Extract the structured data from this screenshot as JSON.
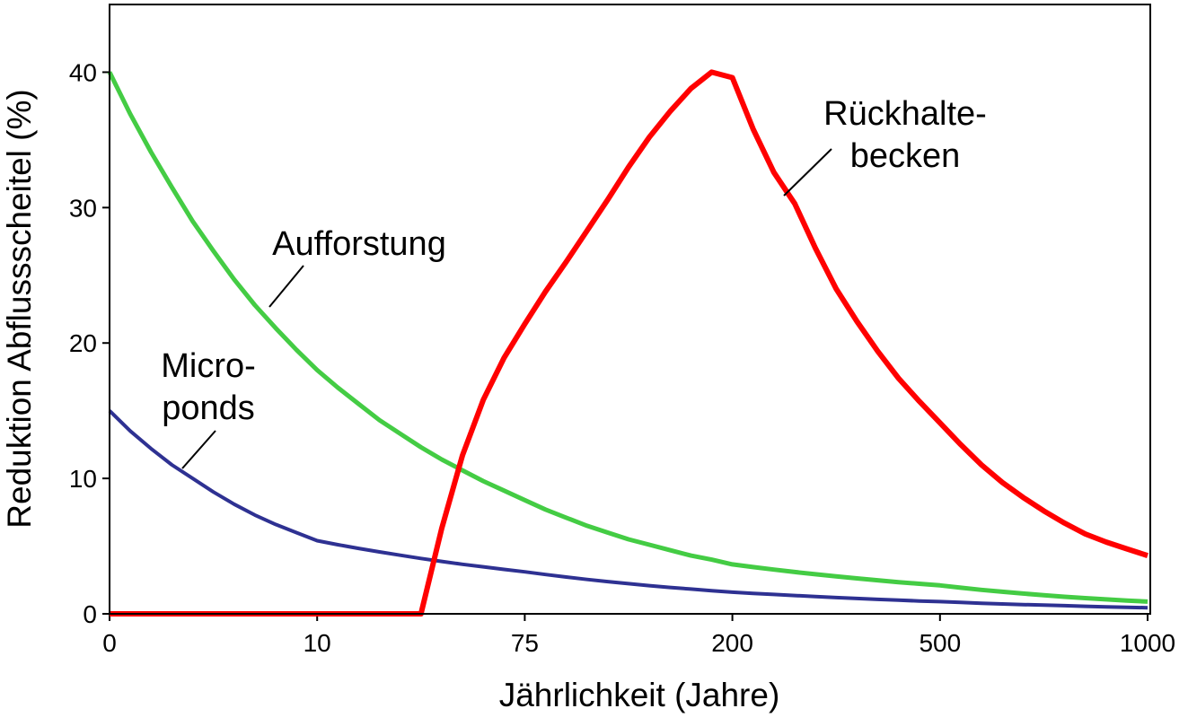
{
  "chart_data": {
    "type": "line",
    "x_label": "Jährlichkeit (Jahre)",
    "y_label": "Reduktion Abflussscheitel (%)",
    "categories": [
      "0",
      null,
      null,
      null,
      null,
      null,
      null,
      null,
      null,
      null,
      "10",
      null,
      null,
      null,
      null,
      null,
      null,
      null,
      null,
      null,
      "75",
      null,
      null,
      null,
      null,
      null,
      null,
      null,
      null,
      null,
      "200",
      null,
      null,
      null,
      null,
      null,
      null,
      null,
      null,
      null,
      "500",
      null,
      null,
      null,
      null,
      null,
      null,
      null,
      null,
      null,
      "1000"
    ],
    "ylim": [
      0,
      45
    ],
    "yticks": [
      0,
      10,
      20,
      30,
      40
    ],
    "series": [
      {
        "name": "Aufforstung",
        "color": "#44cc44",
        "values": [
          40,
          36.9,
          34.1,
          31.5,
          29.0,
          26.8,
          24.7,
          22.8,
          21.1,
          19.5,
          18.0,
          16.7,
          15.5,
          14.3,
          13.3,
          12.3,
          11.4,
          10.6,
          9.8,
          9.1,
          8.4,
          7.7,
          7.1,
          6.5,
          6.0,
          5.5,
          5.1,
          4.7,
          4.3,
          4.0,
          3.65,
          3.45,
          3.27,
          3.09,
          2.92,
          2.77,
          2.62,
          2.48,
          2.34,
          2.22,
          2.1,
          1.93,
          1.77,
          1.63,
          1.5,
          1.38,
          1.26,
          1.16,
          1.07,
          0.98,
          0.9
        ]
      },
      {
        "name": "Micro-ponds",
        "color": "#2e3192",
        "values": [
          15,
          13.5,
          12.2,
          11.0,
          10.0,
          9.0,
          8.1,
          7.3,
          6.6,
          6.0,
          5.4,
          5.1,
          4.83,
          4.57,
          4.33,
          4.09,
          3.87,
          3.66,
          3.47,
          3.28,
          3.1,
          2.9,
          2.72,
          2.54,
          2.38,
          2.23,
          2.08,
          1.95,
          1.83,
          1.71,
          1.6,
          1.51,
          1.43,
          1.35,
          1.27,
          1.2,
          1.13,
          1.07,
          1.01,
          0.95,
          0.9,
          0.84,
          0.78,
          0.73,
          0.68,
          0.64,
          0.6,
          0.56,
          0.52,
          0.48,
          0.45
        ]
      },
      {
        "name": "Rückhaltebecken",
        "color": "#ff0000",
        "values": [
          0,
          0,
          0,
          0,
          0,
          0,
          0,
          0,
          0,
          0,
          0,
          0,
          0,
          0,
          0,
          0,
          6.3,
          11.7,
          15.8,
          18.9,
          21.4,
          23.8,
          26.0,
          28.3,
          30.6,
          33.0,
          35.2,
          37.1,
          38.8,
          40.0,
          39.6,
          35.8,
          32.6,
          30.3,
          27.0,
          24.0,
          21.6,
          19.4,
          17.4,
          15.7,
          14.1,
          12.5,
          11.0,
          9.7,
          8.6,
          7.6,
          6.7,
          5.9,
          5.3,
          4.8,
          4.3
        ]
      }
    ],
    "annotations": [
      {
        "lines": [
          "Aufforstung"
        ]
      },
      {
        "lines": [
          "Micro-",
          "ponds"
        ]
      },
      {
        "lines": [
          "Rückhalte-",
          "becken"
        ]
      }
    ]
  }
}
